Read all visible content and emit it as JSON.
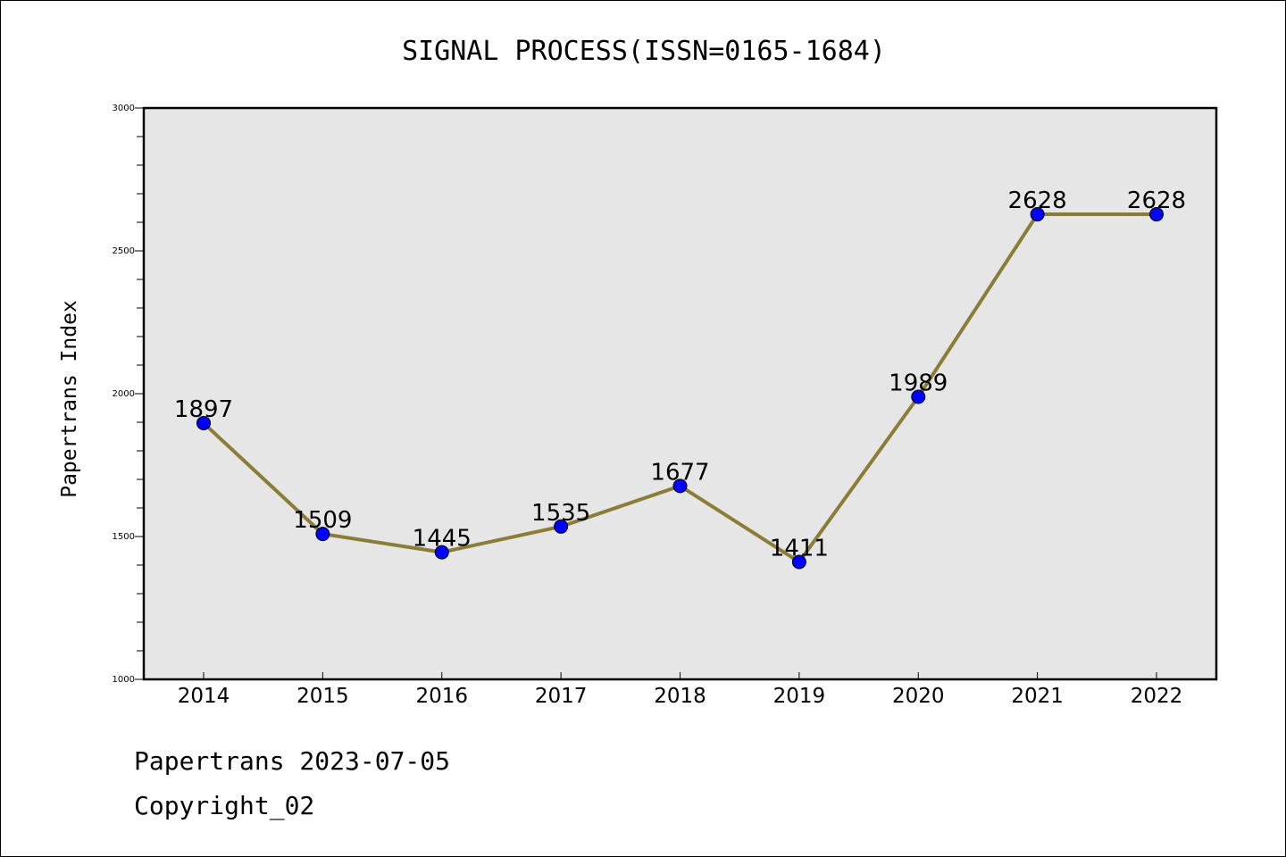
{
  "chart_data": {
    "type": "line",
    "title": "SIGNAL PROCESS(ISSN=0165-1684)",
    "xlabel": "",
    "ylabel": "Papertrans Index",
    "categories": [
      "2014",
      "2015",
      "2016",
      "2017",
      "2018",
      "2019",
      "2020",
      "2021",
      "2022"
    ],
    "series": [
      {
        "values": [
          1897,
          1509,
          1445,
          1535,
          1677,
          1411,
          1989,
          2628,
          2628
        ]
      }
    ],
    "ylim": [
      1000,
      3000
    ],
    "yticks": [
      "1000",
      "1500",
      "2000",
      "2500",
      "3000"
    ],
    "data_labels": [
      "1897",
      "1509",
      "1445",
      "1535",
      "1677",
      "1411",
      "1989",
      "2628",
      "2628"
    ],
    "grid": false,
    "legend": "none",
    "colors": {
      "line": "#8b7d38",
      "marker": "#0000ff",
      "plot_background": "#e6e6e6"
    }
  },
  "footer": {
    "line1": "Papertrans 2023-07-05",
    "line2": "Copyright_02"
  }
}
